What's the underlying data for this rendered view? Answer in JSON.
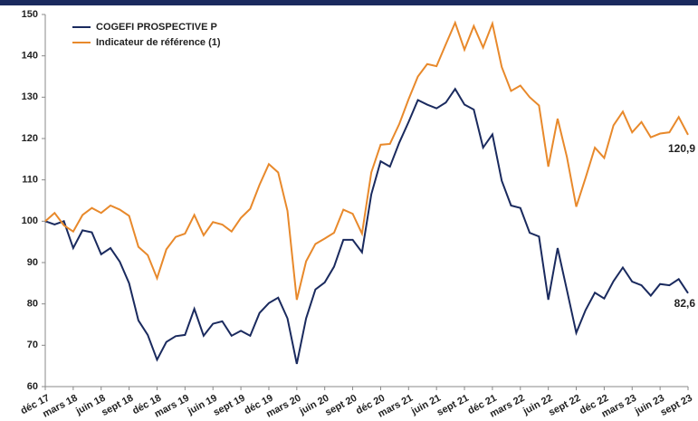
{
  "chart_data": {
    "type": "line",
    "categories": [
      "déc 17",
      null,
      null,
      "mars 18",
      null,
      null,
      "juin 18",
      null,
      null,
      "sept 18",
      null,
      null,
      "déc 18",
      null,
      null,
      "mars 19",
      null,
      null,
      "juin 19",
      null,
      null,
      "sept 19",
      null,
      null,
      "déc 19",
      null,
      null,
      "mars 20",
      null,
      null,
      "juin 20",
      null,
      null,
      "sept 20",
      null,
      null,
      "déc 20",
      null,
      null,
      "mars 21",
      null,
      null,
      "juin 21",
      null,
      null,
      "sept 21",
      null,
      null,
      "déc 21",
      null,
      null,
      "mars 22",
      null,
      null,
      "juin 22",
      null,
      null,
      "sept 22",
      null,
      null,
      "déc 22",
      null,
      null,
      "mars 23",
      null,
      null,
      "juin 23",
      null,
      null,
      "sept 23"
    ],
    "series": [
      {
        "name": "COGEFI PROSPECTIVE P",
        "color": "#1a2a5e",
        "values": [
          100,
          99.2,
          100,
          93.5,
          97.8,
          97.3,
          92,
          93.5,
          90.2,
          85,
          76,
          72.5,
          66.5,
          70.8,
          72.2,
          72.5,
          78.8,
          72.3,
          75.2,
          75.8,
          72.3,
          73.5,
          72.3,
          77.8,
          80.2,
          81.5,
          76.5,
          65.5,
          76.5,
          83.5,
          85.2,
          89,
          95.5,
          95.5,
          92.5,
          106.5,
          114.5,
          113.2,
          119,
          124,
          129.3,
          128.2,
          127.3,
          128.7,
          132,
          128.2,
          127,
          117.8,
          121,
          109.8,
          103.8,
          103.2,
          97.2,
          96.3,
          81,
          93.5,
          83.3,
          73,
          78.5,
          82.7,
          81.3,
          85.5,
          88.8,
          85.4,
          84.5,
          82,
          84.8,
          84.5,
          86,
          82.6
        ],
        "value_labels": [
          null,
          null,
          null,
          null,
          null,
          null,
          null,
          null,
          null,
          null,
          null,
          null,
          null,
          null,
          null,
          null,
          null,
          null,
          null,
          null,
          null,
          null,
          null,
          null,
          null,
          null,
          null,
          null,
          null,
          null,
          null,
          null,
          null,
          null,
          null,
          null,
          null,
          null,
          null,
          null,
          null,
          null,
          null,
          null,
          null,
          null,
          null,
          null,
          null,
          null,
          null,
          null,
          null,
          null,
          null,
          null,
          null,
          null,
          null,
          null,
          null,
          null,
          null,
          null,
          null,
          null,
          null,
          null,
          null,
          "82,6"
        ]
      },
      {
        "name": "Indicateur de référence (1)",
        "color": "#e8892b",
        "values": [
          100,
          102,
          99,
          97.5,
          101.5,
          103.2,
          102,
          103.8,
          102.8,
          101.3,
          93.8,
          91.8,
          86.2,
          93.2,
          96.2,
          97,
          101.5,
          96.6,
          99.8,
          99.2,
          97.5,
          100.8,
          103,
          108.8,
          113.8,
          111.8,
          102.5,
          81,
          90.3,
          94.5,
          95.8,
          97.2,
          102.8,
          101.8,
          97,
          111.8,
          118.5,
          118.7,
          123.5,
          129.5,
          135,
          138,
          137.5,
          142.8,
          148,
          141.5,
          147.2,
          142,
          147.8,
          137.3,
          131.5,
          132.8,
          130,
          128,
          113.2,
          124.8,
          115.5,
          103.5,
          110.5,
          117.8,
          115.3,
          123.2,
          126.5,
          121.5,
          124,
          120.3,
          121.2,
          121.5,
          125.2,
          120.9
        ],
        "value_labels": [
          null,
          null,
          null,
          null,
          null,
          null,
          null,
          null,
          null,
          null,
          null,
          null,
          null,
          null,
          null,
          null,
          null,
          null,
          null,
          null,
          null,
          null,
          null,
          null,
          null,
          null,
          null,
          null,
          null,
          null,
          null,
          null,
          null,
          null,
          null,
          null,
          null,
          null,
          null,
          null,
          null,
          null,
          null,
          null,
          null,
          null,
          null,
          null,
          null,
          null,
          null,
          null,
          null,
          null,
          null,
          null,
          null,
          null,
          null,
          null,
          null,
          null,
          null,
          null,
          null,
          null,
          null,
          null,
          null,
          "120,9"
        ]
      }
    ],
    "ylim": [
      60,
      150
    ],
    "yticks": [
      60,
      70,
      80,
      90,
      100,
      110,
      120,
      130,
      140,
      150
    ],
    "grid": false,
    "legend": "upper left"
  }
}
